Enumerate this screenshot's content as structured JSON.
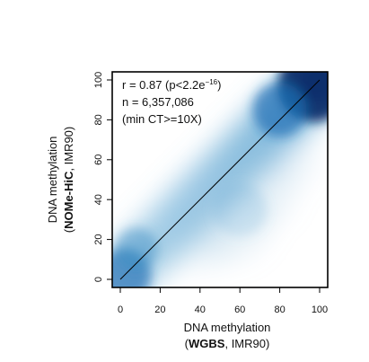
{
  "chart_data": {
    "type": "heatmap",
    "subtype": "2d-density-scatter",
    "xlabel": {
      "line1": "DNA methylation",
      "line2_bold": "WGBS",
      "line2_rest": ", IMR90)"
    },
    "ylabel": {
      "line1": "DNA methylation",
      "line2_bold": "NOMe-HiC",
      "line2_rest": ", IMR90)"
    },
    "xlim": [
      0,
      100
    ],
    "ylim": [
      0,
      100
    ],
    "x_ticks": [
      0,
      20,
      40,
      60,
      80,
      100
    ],
    "y_ticks": [
      0,
      20,
      40,
      60,
      80,
      100
    ],
    "annotations": {
      "r_line_main": "r = 0.87 (p<2.2e",
      "r_line_sup": "−16",
      "r_line_end": ")",
      "n_line": "n = 6,357,086",
      "ct_line": "(min CT>=10X)"
    },
    "reference_line": {
      "type": "identity",
      "from": [
        0,
        0
      ],
      "to": [
        100,
        100
      ]
    },
    "density_hotspots": [
      {
        "x": 97,
        "y": 97,
        "intensity": "highest"
      },
      {
        "x": 80,
        "y": 85,
        "intensity": "high"
      },
      {
        "x": 2,
        "y": 2,
        "intensity": "high"
      },
      {
        "x": 8,
        "y": 15,
        "intensity": "medium"
      },
      {
        "x": 60,
        "y": 35,
        "intensity": "low"
      }
    ],
    "colors": {
      "low": "#ffffff",
      "high": "#08306b",
      "mid": "#3d8fc7",
      "line": "#000000"
    },
    "grid": false
  }
}
